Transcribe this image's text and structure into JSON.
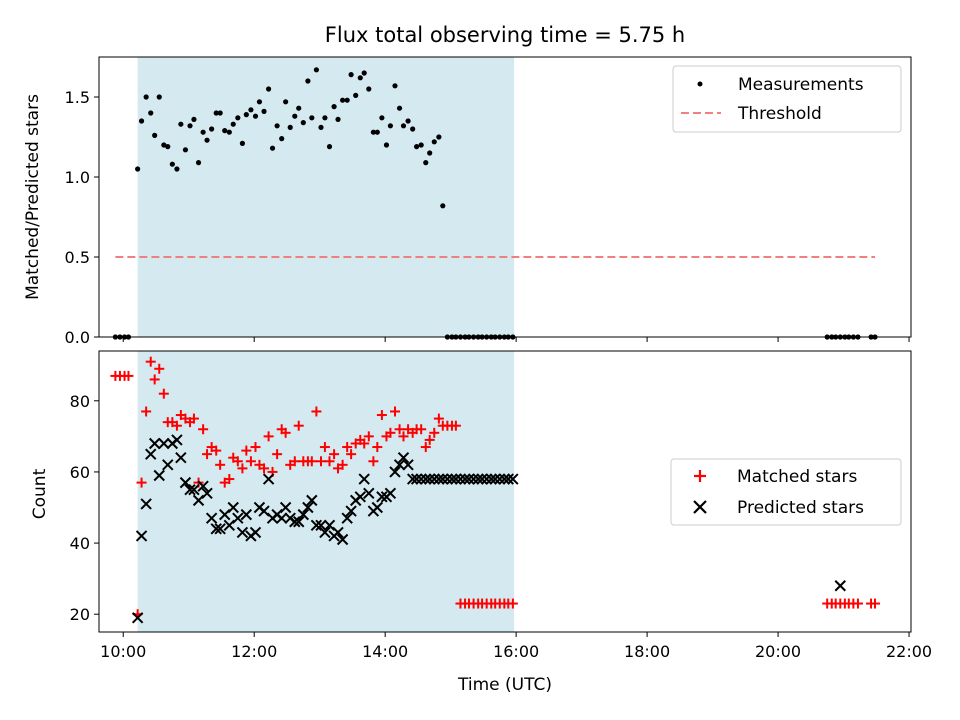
{
  "chart_data": [
    {
      "type": "scatter",
      "title": "Flux total observing time = 5.75 h",
      "xlabel": "",
      "ylabel": "Matched/Predicted stars",
      "xlim": [
        9.63,
        22.03
      ],
      "ylim": [
        0.0,
        1.75
      ],
      "xticks": [
        10,
        12,
        14,
        16,
        18,
        20,
        22
      ],
      "yticks": [
        0.0,
        0.5,
        1.0,
        1.5
      ],
      "ytick_labels": [
        "0.0",
        "0.5",
        "1.0",
        "1.5"
      ],
      "shaded_span": {
        "x0": 10.22,
        "x1": 15.97,
        "color": "#d4eaf0"
      },
      "legend": {
        "position": "top-right",
        "entries": [
          "Measurements",
          "Threshold"
        ]
      },
      "series": [
        {
          "name": "Measurements",
          "marker": "dot",
          "color": "#000000",
          "x": [
            9.88,
            9.95,
            10.02,
            10.08,
            10.22,
            10.28,
            10.35,
            10.42,
            10.48,
            10.55,
            10.62,
            10.68,
            10.75,
            10.82,
            10.88,
            10.95,
            11.02,
            11.08,
            11.15,
            11.22,
            11.28,
            11.35,
            11.42,
            11.48,
            11.55,
            11.62,
            11.68,
            11.75,
            11.82,
            11.88,
            11.95,
            12.02,
            12.08,
            12.15,
            12.22,
            12.28,
            12.35,
            12.42,
            12.48,
            12.55,
            12.62,
            12.68,
            12.75,
            12.82,
            12.88,
            12.95,
            13.02,
            13.08,
            13.15,
            13.22,
            13.28,
            13.35,
            13.42,
            13.48,
            13.55,
            13.62,
            13.68,
            13.75,
            13.82,
            13.88,
            13.95,
            14.02,
            14.08,
            14.15,
            14.22,
            14.28,
            14.35,
            14.42,
            14.48,
            14.55,
            14.62,
            14.68,
            14.75,
            14.82,
            14.88,
            14.95,
            15.02,
            15.08,
            15.15,
            15.22,
            15.28,
            15.35,
            15.42,
            15.48,
            15.55,
            15.62,
            15.68,
            15.75,
            15.82,
            15.88,
            15.95,
            20.75,
            20.82,
            20.88,
            20.95,
            21.02,
            21.08,
            21.15,
            21.22,
            21.42,
            21.48
          ],
          "y": [
            0.0,
            0.0,
            0.0,
            0.0,
            1.05,
            1.35,
            1.5,
            1.4,
            1.26,
            1.5,
            1.2,
            1.19,
            1.08,
            1.05,
            1.33,
            1.17,
            1.32,
            1.36,
            1.09,
            1.28,
            1.23,
            1.3,
            1.4,
            1.4,
            1.29,
            1.28,
            1.33,
            1.37,
            1.21,
            1.39,
            1.42,
            1.38,
            1.47,
            1.41,
            1.55,
            1.18,
            1.32,
            1.24,
            1.47,
            1.31,
            1.38,
            1.43,
            1.34,
            1.6,
            1.37,
            1.67,
            1.31,
            1.37,
            1.19,
            1.44,
            1.36,
            1.48,
            1.48,
            1.64,
            1.51,
            1.62,
            1.65,
            1.55,
            1.28,
            1.28,
            1.37,
            1.2,
            1.32,
            1.57,
            1.43,
            1.32,
            1.35,
            1.3,
            1.19,
            1.2,
            1.09,
            1.15,
            1.22,
            1.25,
            0.82,
            0.0,
            0.0,
            0.0,
            0.0,
            0.0,
            0.0,
            0.0,
            0.0,
            0.0,
            0.0,
            0.0,
            0.0,
            0.0,
            0.0,
            0.0,
            0.0,
            0.0,
            0.0,
            0.0,
            0.0,
            0.0,
            0.0,
            0.0,
            0.0,
            0.0,
            0.0
          ]
        },
        {
          "name": "Threshold",
          "marker": "dashed-line",
          "color": "#f08080",
          "x": [
            9.88,
            21.48
          ],
          "y": [
            0.5,
            0.5
          ]
        }
      ]
    },
    {
      "type": "scatter",
      "title": "",
      "xlabel": "Time (UTC)",
      "ylabel": "Count",
      "xlim": [
        9.63,
        22.03
      ],
      "ylim": [
        15,
        94
      ],
      "xticks": [
        10,
        12,
        14,
        16,
        18,
        20,
        22
      ],
      "xtick_labels": [
        "10:00",
        "12:00",
        "14:00",
        "16:00",
        "18:00",
        "20:00",
        "22:00"
      ],
      "yticks": [
        20,
        40,
        60,
        80
      ],
      "shaded_span": {
        "x0": 10.22,
        "x1": 15.97,
        "color": "#d4eaf0"
      },
      "legend": {
        "position": "center-right",
        "entries": [
          "Matched stars",
          "Predicted stars"
        ]
      },
      "series": [
        {
          "name": "Matched stars",
          "marker": "plus",
          "color": "#ff0000",
          "x": [
            9.88,
            9.95,
            10.02,
            10.08,
            10.22,
            10.28,
            10.35,
            10.42,
            10.48,
            10.55,
            10.62,
            10.68,
            10.75,
            10.82,
            10.88,
            10.95,
            11.02,
            11.08,
            11.15,
            11.22,
            11.28,
            11.35,
            11.42,
            11.48,
            11.55,
            11.62,
            11.68,
            11.75,
            11.82,
            11.88,
            11.95,
            12.02,
            12.08,
            12.15,
            12.22,
            12.28,
            12.35,
            12.42,
            12.48,
            12.55,
            12.62,
            12.68,
            12.75,
            12.82,
            12.88,
            12.95,
            13.02,
            13.08,
            13.15,
            13.22,
            13.28,
            13.35,
            13.42,
            13.48,
            13.55,
            13.62,
            13.68,
            13.75,
            13.82,
            13.88,
            13.95,
            14.02,
            14.08,
            14.15,
            14.22,
            14.28,
            14.35,
            14.42,
            14.48,
            14.55,
            14.62,
            14.68,
            14.75,
            14.82,
            14.88,
            14.95,
            15.02,
            15.08,
            15.15,
            15.22,
            15.28,
            15.35,
            15.42,
            15.48,
            15.55,
            15.62,
            15.68,
            15.75,
            15.82,
            15.88,
            15.95,
            20.75,
            20.82,
            20.88,
            20.95,
            21.02,
            21.08,
            21.15,
            21.22,
            21.42,
            21.48
          ],
          "y": [
            87,
            87,
            87,
            87,
            20,
            57,
            77,
            91,
            86,
            89,
            82,
            74,
            74,
            73,
            76,
            75,
            74,
            75,
            57,
            72,
            65,
            67,
            66,
            62,
            57,
            58,
            64,
            63,
            61,
            66,
            63,
            67,
            62,
            61,
            70,
            60,
            65,
            72,
            71,
            62,
            63,
            73,
            63,
            63,
            63,
            77,
            63,
            67,
            63,
            65,
            61,
            62,
            67,
            65,
            68,
            69,
            68,
            70,
            63,
            67,
            76,
            70,
            71,
            77,
            72,
            70,
            72,
            71,
            72,
            72,
            67,
            69,
            71,
            75,
            73,
            73,
            73,
            73,
            23,
            23,
            23,
            23,
            23,
            23,
            23,
            23,
            23,
            23,
            23,
            23,
            23,
            23,
            23,
            23,
            23,
            23,
            23,
            23,
            23,
            23,
            23
          ]
        },
        {
          "name": "Predicted stars",
          "marker": "x",
          "color": "#000000",
          "x": [
            10.22,
            10.28,
            10.35,
            10.42,
            10.48,
            10.55,
            10.62,
            10.68,
            10.75,
            10.82,
            10.88,
            10.95,
            11.02,
            11.08,
            11.15,
            11.22,
            11.28,
            11.35,
            11.42,
            11.48,
            11.55,
            11.62,
            11.68,
            11.75,
            11.82,
            11.88,
            11.95,
            12.02,
            12.08,
            12.15,
            12.22,
            12.28,
            12.35,
            12.42,
            12.48,
            12.55,
            12.62,
            12.68,
            12.75,
            12.82,
            12.88,
            12.95,
            13.02,
            13.08,
            13.15,
            13.22,
            13.28,
            13.35,
            13.42,
            13.48,
            13.55,
            13.62,
            13.68,
            13.75,
            13.82,
            13.88,
            13.95,
            14.02,
            14.08,
            14.15,
            14.22,
            14.28,
            14.35,
            14.42,
            14.48,
            14.55,
            14.62,
            14.68,
            14.75,
            14.82,
            14.88,
            14.95,
            15.02,
            15.08,
            15.15,
            15.22,
            15.28,
            15.35,
            15.42,
            15.48,
            15.55,
            15.62,
            15.68,
            15.75,
            15.82,
            15.88,
            15.95,
            20.95
          ],
          "y": [
            19,
            42,
            51,
            65,
            68,
            59,
            68,
            62,
            68,
            69,
            64,
            57,
            55,
            55,
            52,
            56,
            54,
            47,
            44,
            44,
            48,
            45,
            50,
            47,
            43,
            48,
            42,
            43,
            50,
            49,
            58,
            47,
            48,
            47,
            50,
            47,
            46,
            46,
            48,
            50,
            52,
            45,
            45,
            43,
            45,
            42,
            43,
            41,
            47,
            49,
            52,
            53,
            58,
            54,
            49,
            50,
            53,
            53,
            54,
            60,
            62,
            64,
            62,
            58,
            58,
            58,
            58,
            58,
            58,
            58,
            58,
            58,
            58,
            58,
            58,
            58,
            58,
            58,
            58,
            58,
            58,
            58,
            58,
            58,
            58,
            58,
            58,
            28
          ]
        }
      ]
    }
  ]
}
